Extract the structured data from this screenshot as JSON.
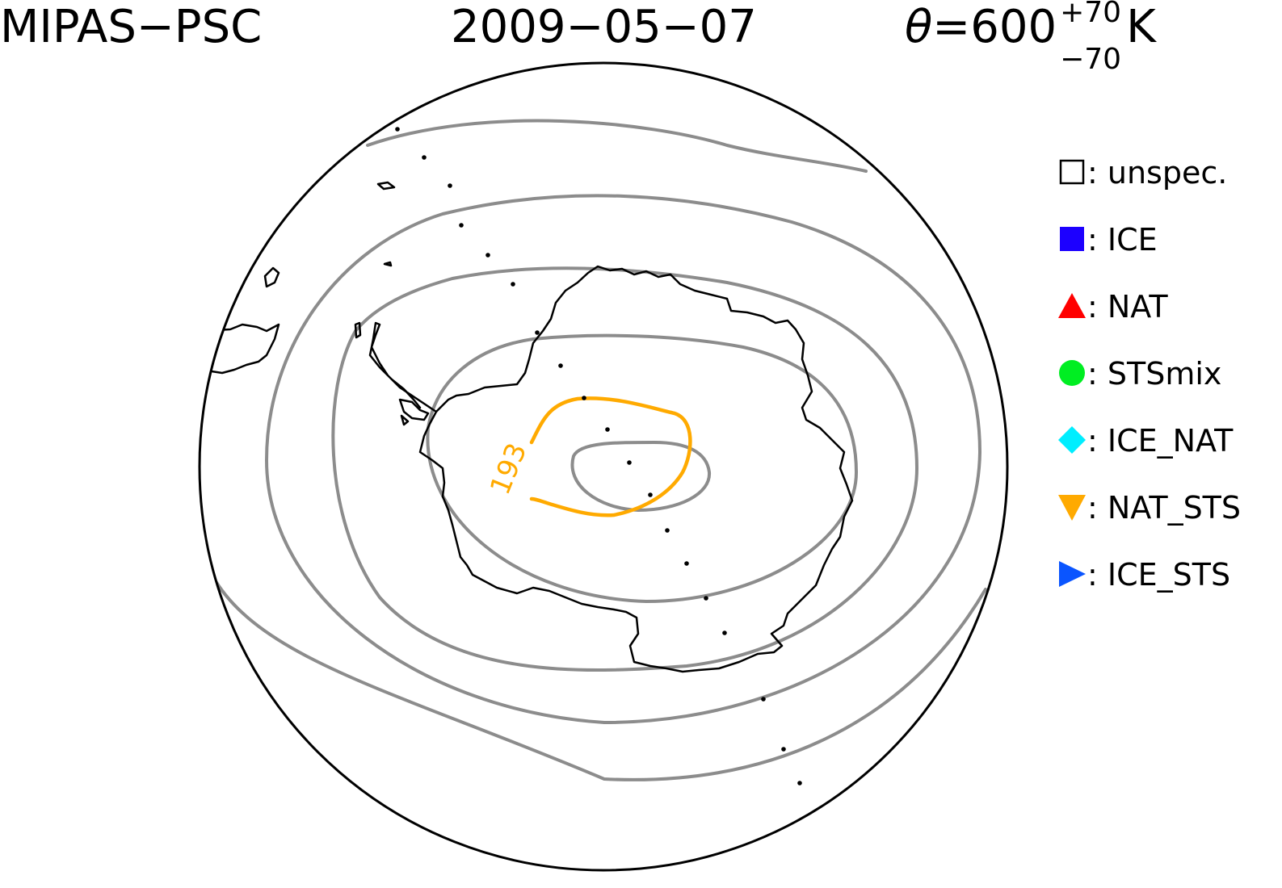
{
  "header": {
    "instrument": "MIPAS−PSC",
    "date": "2009−05−07",
    "theta_symbol": "θ",
    "theta_value": "=600",
    "theta_upper": "+70",
    "theta_lower": "−70",
    "theta_unit": "K"
  },
  "map": {
    "projection": "south-polar-stereographic",
    "contour_label": "193",
    "colors": {
      "coastline": "#000000",
      "isotherm": "#8c8c8c",
      "psc_contour": "#ffaa00",
      "border": "#000000"
    }
  },
  "legend": [
    {
      "symbol": "open-square",
      "color": "#000000",
      "label": ": unspec."
    },
    {
      "symbol": "filled-square",
      "color": "#1c00ff",
      "label": ": ICE"
    },
    {
      "symbol": "triangle-up",
      "color": "#ff0000",
      "label": ": NAT"
    },
    {
      "symbol": "circle",
      "color": "#00ee22",
      "label": ": STSmix"
    },
    {
      "symbol": "diamond",
      "color": "#00eeff",
      "label": ": ICE_NAT"
    },
    {
      "symbol": "triangle-down",
      "color": "#ffaa00",
      "label": ": NAT_STS"
    },
    {
      "symbol": "triangle-right",
      "color": "#0a55ff",
      "label": ": ICE_STS"
    }
  ]
}
